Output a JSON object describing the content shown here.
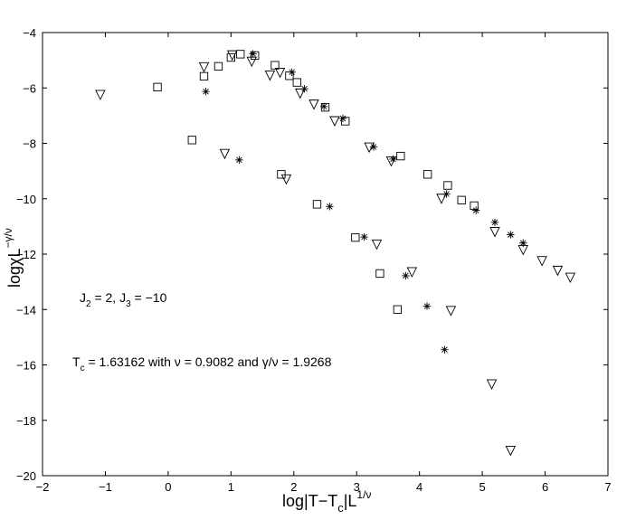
{
  "chart_data": {
    "type": "scatter",
    "xlim": [
      -2,
      7
    ],
    "ylim": [
      -20,
      -4
    ],
    "x_ticks": [
      -2,
      -1,
      0,
      1,
      2,
      3,
      4,
      5,
      6,
      7
    ],
    "y_ticks": [
      -20,
      -18,
      -16,
      -14,
      -12,
      -10,
      -8,
      -6,
      -4
    ],
    "x_tick_labels": [
      "−2",
      "−1",
      "0",
      "1",
      "2",
      "3",
      "4",
      "5",
      "6",
      "7"
    ],
    "y_tick_labels": [
      "−20",
      "−18",
      "−16",
      "−14",
      "−12",
      "−10",
      "−8",
      "−6",
      "−4"
    ],
    "grid": false,
    "legend": "none",
    "xlabel": {
      "main": "log|T−T",
      "sub": "c",
      "rest": "|L",
      "sup": "1/ν"
    },
    "ylabel": {
      "main": "logχL",
      "sup": "−γ/ν"
    },
    "annotations": {
      "line1": {
        "a": "J",
        "a_sub": "2",
        "b": " = 2, J",
        "b_sub": "3",
        "c": " = −10"
      },
      "line2": {
        "a": "T",
        "a_sub": "c",
        "b": " = 1.63162 with ν = 0.9082 and γ/ν = 1.9268"
      }
    },
    "series": [
      {
        "marker": "square",
        "points": [
          [
            -0.17,
            -5.97
          ],
          [
            0.38,
            -7.88
          ],
          [
            0.57,
            -5.58
          ],
          [
            0.8,
            -5.22
          ],
          [
            1.0,
            -4.9
          ],
          [
            1.15,
            -4.78
          ],
          [
            1.38,
            -4.83
          ],
          [
            1.7,
            -5.18
          ],
          [
            1.8,
            -9.12
          ],
          [
            1.93,
            -5.56
          ],
          [
            2.05,
            -5.8
          ],
          [
            2.37,
            -10.2
          ],
          [
            2.5,
            -6.7
          ],
          [
            2.82,
            -7.2
          ],
          [
            2.98,
            -11.4
          ],
          [
            3.37,
            -12.7
          ],
          [
            3.65,
            -14.0
          ],
          [
            3.7,
            -8.46
          ],
          [
            4.13,
            -9.12
          ],
          [
            4.45,
            -9.52
          ],
          [
            4.67,
            -10.05
          ],
          [
            4.87,
            -10.25
          ]
        ]
      },
      {
        "marker": "triangle-down",
        "points": [
          [
            -1.08,
            -6.25
          ],
          [
            0.57,
            -5.25
          ],
          [
            0.9,
            -8.38
          ],
          [
            1.02,
            -4.82
          ],
          [
            1.33,
            -5.05
          ],
          [
            1.62,
            -5.55
          ],
          [
            1.78,
            -5.45
          ],
          [
            1.88,
            -9.3
          ],
          [
            2.1,
            -6.2
          ],
          [
            2.32,
            -6.6
          ],
          [
            2.65,
            -7.2
          ],
          [
            3.2,
            -8.15
          ],
          [
            3.32,
            -11.65
          ],
          [
            3.55,
            -8.65
          ],
          [
            3.88,
            -12.65
          ],
          [
            4.35,
            -10.0
          ],
          [
            4.5,
            -14.05
          ],
          [
            5.15,
            -16.7
          ],
          [
            5.2,
            -11.2
          ],
          [
            5.45,
            -19.1
          ],
          [
            5.65,
            -11.85
          ],
          [
            5.95,
            -12.25
          ],
          [
            6.2,
            -12.6
          ],
          [
            6.4,
            -12.85
          ]
        ]
      },
      {
        "marker": "asterisk",
        "points": [
          [
            0.6,
            -6.13
          ],
          [
            1.13,
            -8.6
          ],
          [
            1.35,
            -4.77
          ],
          [
            1.97,
            -5.43
          ],
          [
            2.17,
            -6.03
          ],
          [
            2.48,
            -6.67
          ],
          [
            2.57,
            -10.28
          ],
          [
            2.78,
            -7.1
          ],
          [
            3.12,
            -11.38
          ],
          [
            3.27,
            -8.13
          ],
          [
            3.58,
            -8.57
          ],
          [
            3.78,
            -12.78
          ],
          [
            4.12,
            -13.88
          ],
          [
            4.4,
            -15.45
          ],
          [
            4.43,
            -9.83
          ],
          [
            4.9,
            -10.42
          ],
          [
            5.2,
            -10.85
          ],
          [
            5.45,
            -11.3
          ],
          [
            5.65,
            -11.6
          ]
        ]
      }
    ]
  }
}
